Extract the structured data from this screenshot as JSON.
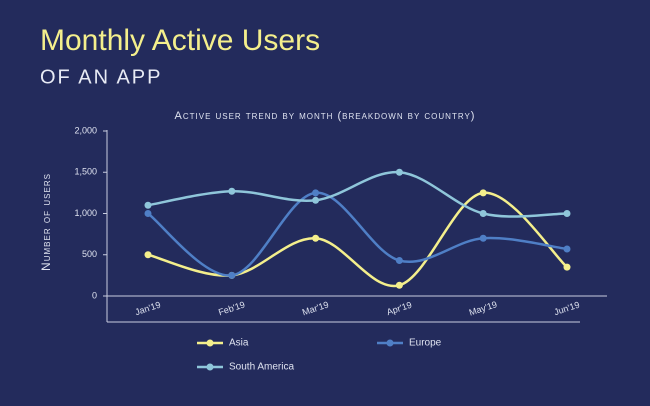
{
  "chart_data": {
    "type": "line",
    "title": "Monthly Active Users",
    "subtitle": "OF AN APP",
    "chart_title": "Active user trend by month (breakdown by country)",
    "y_label": "Number of users",
    "categories": [
      "Jan'19",
      "Feb'19",
      "Mar'19",
      "Apr'19",
      "May'19",
      "Jun'19"
    ],
    "series": [
      {
        "name": "Asia",
        "color": "#f4ef8c",
        "values": [
          500,
          250,
          700,
          130,
          1250,
          350
        ]
      },
      {
        "name": "Europe",
        "color": "#4f7fc6",
        "values": [
          1000,
          250,
          1250,
          430,
          700,
          570
        ]
      },
      {
        "name": "South America",
        "color": "#8fc6da",
        "values": [
          1100,
          1270,
          1160,
          1500,
          1000,
          1000
        ]
      }
    ],
    "ylim": [
      0,
      2000
    ],
    "yticks": [
      0,
      500,
      {
        "value": 1000,
        "label": "1,000"
      },
      {
        "value": 1500,
        "label": "1,500"
      },
      {
        "value": 2000,
        "label": "2,000"
      }
    ],
    "smooth": true
  }
}
